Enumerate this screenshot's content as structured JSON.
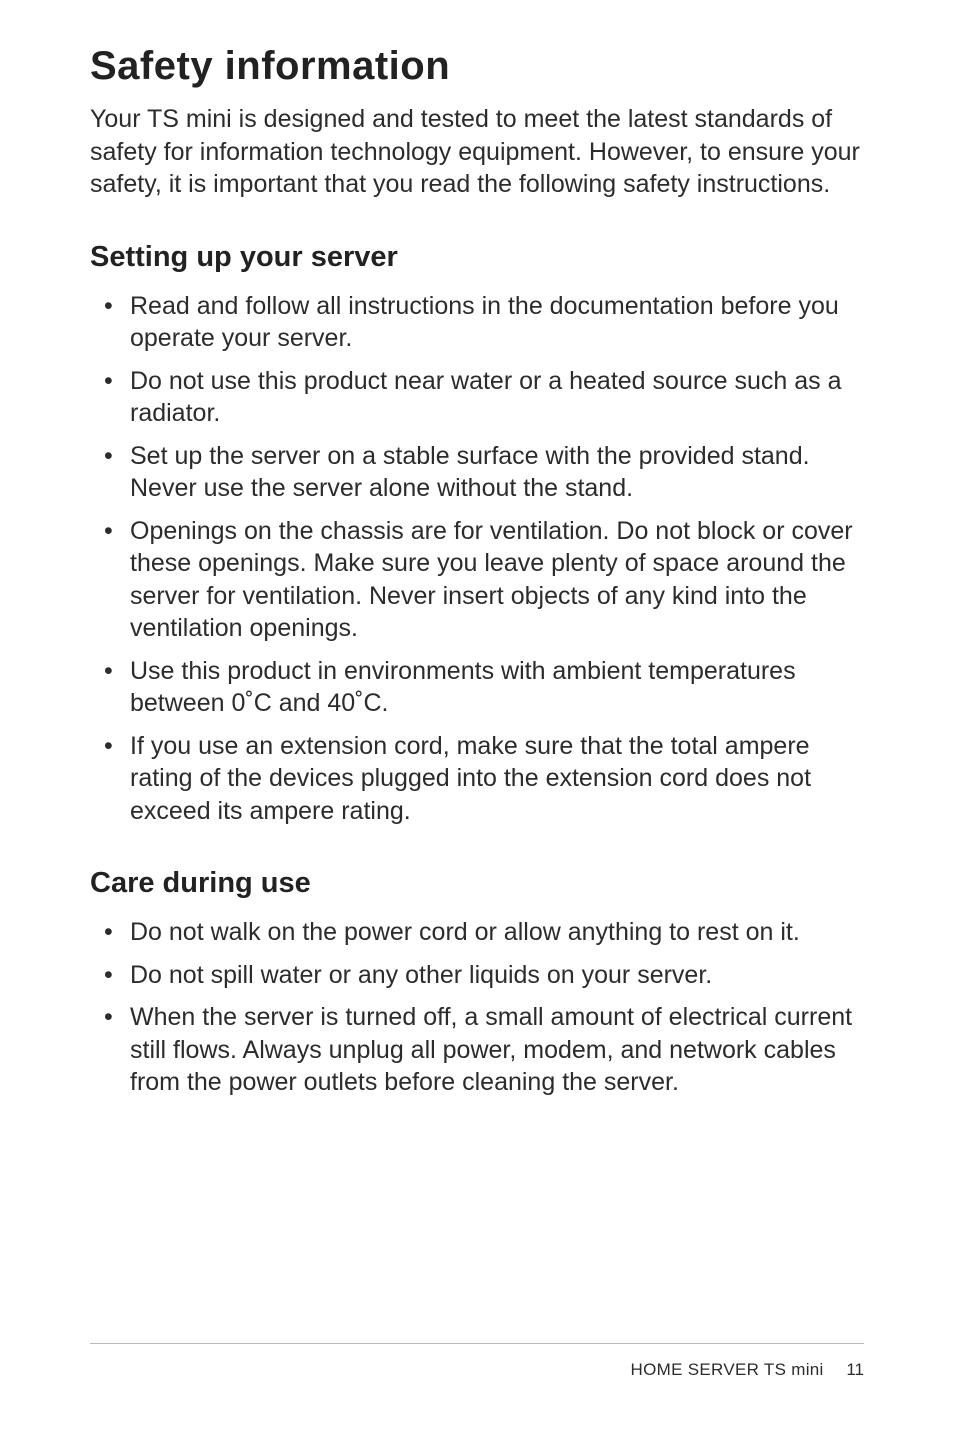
{
  "title": "Safety information",
  "intro": "Your TS mini is designed and tested to meet the latest standards of safety for information technology equipment. However, to ensure your safety, it is important that you read the following safety instructions.",
  "sections": [
    {
      "heading": "Setting up your server",
      "items": [
        "Read and follow all instructions in the documentation before you operate your server.",
        "Do not use this product near water or a heated source such as a radiator.",
        "Set up the server on a stable surface with the provided stand. Never use the server alone without the stand.",
        "Openings on the chassis are for ventilation. Do not block or cover these openings. Make sure you leave plenty of space around the server for ventilation. Never insert objects of any kind into the ventilation openings.",
        "Use this product in environments with ambient temperatures between 0˚C and 40˚C.",
        "If you use an extension cord, make sure that the total ampere rating of the devices plugged into the extension cord does not exceed its ampere rating."
      ]
    },
    {
      "heading": "Care during use",
      "items": [
        "Do not walk on the power cord or allow anything to rest on it.",
        "Do not spill water or any other liquids on your server.",
        "When the server is turned off, a small amount of electrical current still flows. Always unplug all power, modem, and network cables from the power outlets before cleaning the server."
      ]
    }
  ],
  "footer": {
    "product": "HOME SERVER TS mini",
    "page": "11"
  }
}
